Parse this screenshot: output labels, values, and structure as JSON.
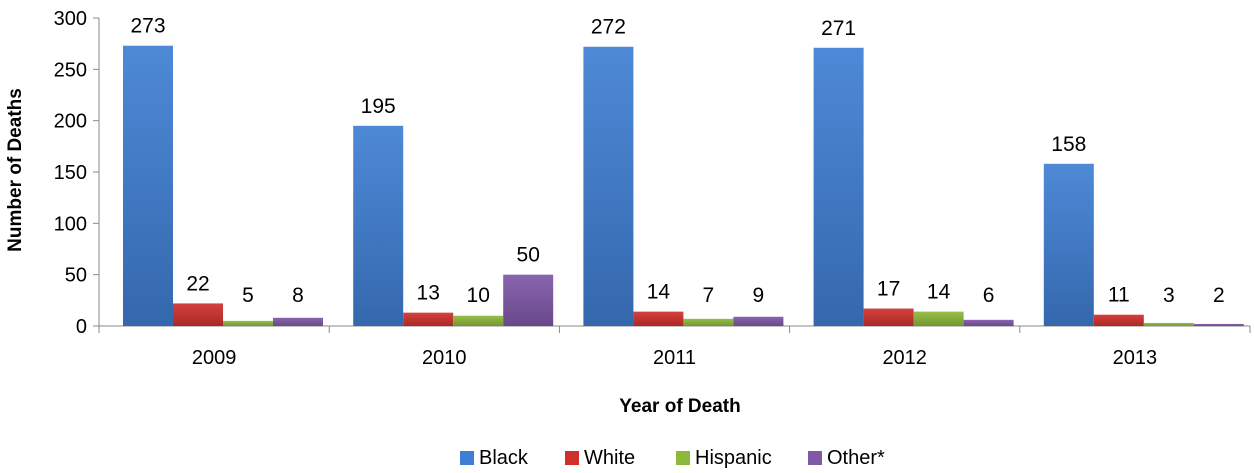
{
  "chart_data": {
    "type": "bar",
    "title": "",
    "xlabel": "Year of Death",
    "ylabel": "Number of Deaths",
    "categories": [
      "2009",
      "2010",
      "2011",
      "2012",
      "2013"
    ],
    "ylim": [
      0,
      300
    ],
    "yticks": [
      0,
      50,
      100,
      150,
      200,
      250,
      300
    ],
    "grid": false,
    "legend_position": "bottom",
    "series": [
      {
        "name": "Black",
        "color": "#3F7FD3",
        "values": [
          273,
          195,
          272,
          271,
          158
        ]
      },
      {
        "name": "White",
        "color": "#D0312D",
        "values": [
          22,
          13,
          14,
          17,
          11
        ]
      },
      {
        "name": "Hispanic",
        "color": "#8DB83A",
        "values": [
          5,
          10,
          7,
          14,
          3
        ]
      },
      {
        "name": "Other*",
        "color": "#7F58A8",
        "values": [
          8,
          50,
          9,
          6,
          2
        ]
      }
    ]
  }
}
